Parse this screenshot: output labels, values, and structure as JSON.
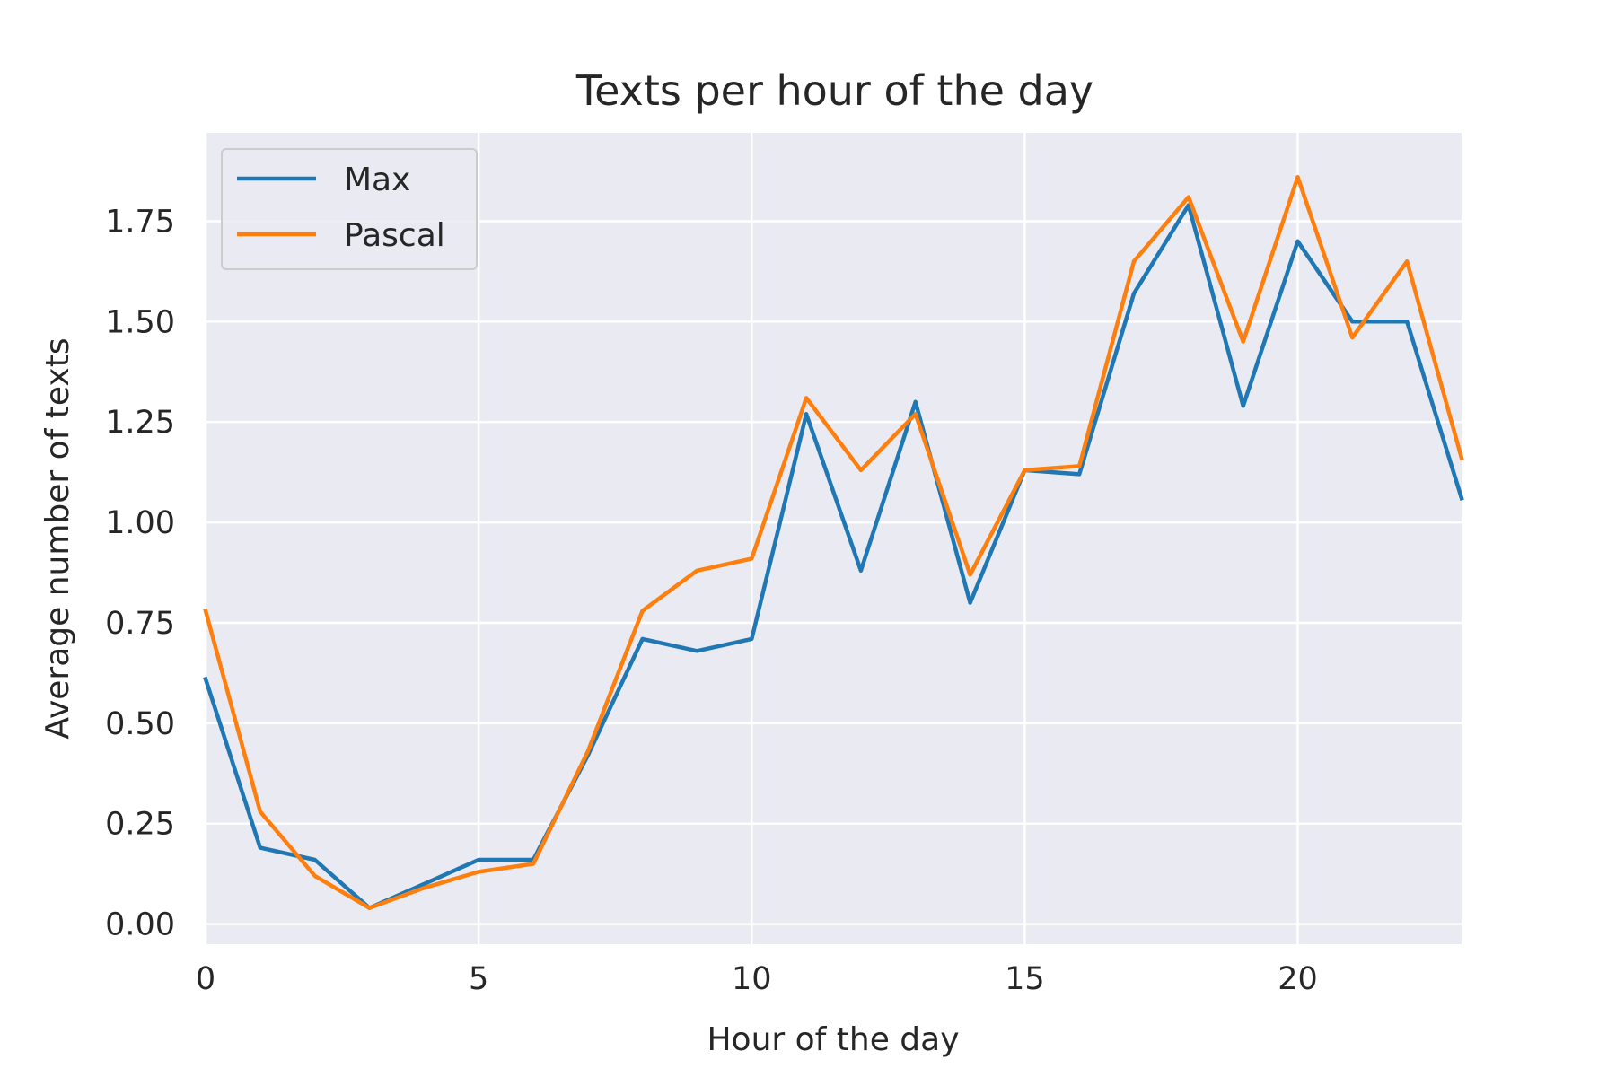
{
  "chart_data": {
    "type": "line",
    "title": "Texts per hour of the day",
    "xlabel": "Hour of the day",
    "ylabel": "Average number of texts",
    "xlim": [
      0,
      23
    ],
    "ylim": [
      -0.05,
      1.97
    ],
    "xticks": [
      0,
      5,
      10,
      15,
      20
    ],
    "xtick_labels": [
      "0",
      "5",
      "10",
      "15",
      "20"
    ],
    "yticks": [
      0.0,
      0.25,
      0.5,
      0.75,
      1.0,
      1.25,
      1.5,
      1.75
    ],
    "ytick_labels": [
      "0.00",
      "0.25",
      "0.50",
      "0.75",
      "1.00",
      "1.25",
      "1.50",
      "1.75"
    ],
    "grid": true,
    "legend_position": "top-left",
    "background_color": "#eaeaf2",
    "grid_color": "#ffffff",
    "x": [
      0,
      1,
      2,
      3,
      4,
      5,
      6,
      7,
      8,
      9,
      10,
      11,
      12,
      13,
      14,
      15,
      16,
      17,
      18,
      19,
      20,
      21,
      22,
      23
    ],
    "series": [
      {
        "name": "Max",
        "color": "#1f77b4",
        "values": [
          0.61,
          0.19,
          0.16,
          0.04,
          0.1,
          0.16,
          0.16,
          0.42,
          0.71,
          0.68,
          0.71,
          1.27,
          0.88,
          1.3,
          0.8,
          1.13,
          1.12,
          1.57,
          1.79,
          1.29,
          1.7,
          1.5,
          1.5,
          1.06
        ]
      },
      {
        "name": "Pascal",
        "color": "#ff7f0e",
        "values": [
          0.78,
          0.28,
          0.12,
          0.04,
          0.09,
          0.13,
          0.15,
          0.43,
          0.78,
          0.88,
          0.91,
          1.31,
          1.13,
          1.27,
          0.87,
          1.13,
          1.14,
          1.65,
          1.81,
          1.45,
          1.86,
          1.46,
          1.65,
          1.16
        ]
      }
    ]
  }
}
